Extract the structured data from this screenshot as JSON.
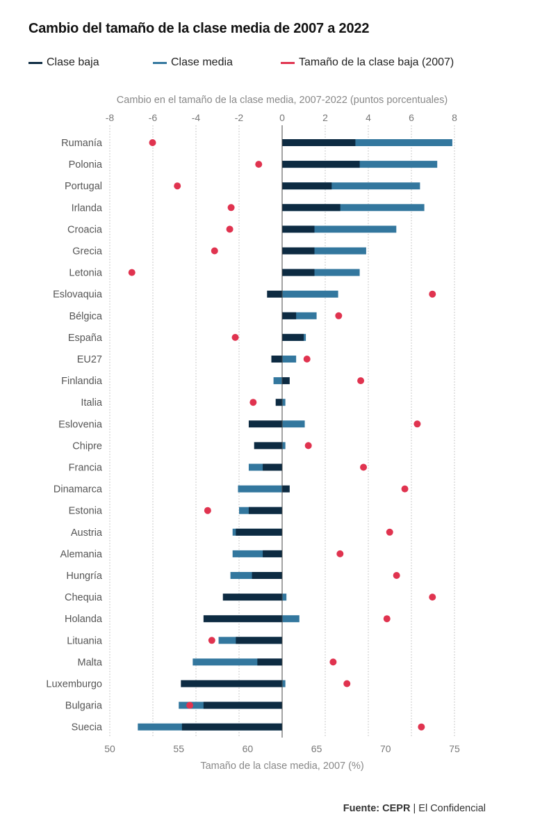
{
  "title": "Cambio del tamaño de la clase media de 2007 a 2022",
  "legend": [
    {
      "label": "Clase baja",
      "color": "#0d2b42"
    },
    {
      "label": "Clase media",
      "color": "#33779e"
    },
    {
      "label": "Tamaño de la clase baja (2007)",
      "color": "#e0334f"
    }
  ],
  "source": {
    "label": "Fuente: CEPR",
    "rest": " | El Confidencial"
  },
  "chart_data": {
    "type": "bar",
    "top_axis": {
      "title": "Cambio en el tamaño de la clase media, 2007-2022 (puntos porcentuales)",
      "range": [
        -8,
        8
      ],
      "ticks": [
        -8,
        -6,
        -4,
        -2,
        0,
        2,
        4,
        6,
        8
      ]
    },
    "bottom_axis": {
      "title": "Tamaño de la clase media, 2007 (%)",
      "range": [
        50,
        75
      ],
      "ticks": [
        50,
        55,
        60,
        65,
        70,
        75
      ]
    },
    "countries": [
      {
        "name": "Rumanía",
        "baja": 3.4,
        "media": 7.9,
        "dot": 53.1
      },
      {
        "name": "Polonia",
        "baja": 3.6,
        "media": 7.2,
        "dot": 60.8
      },
      {
        "name": "Portugal",
        "baja": 2.3,
        "media": 6.4,
        "dot": 54.9
      },
      {
        "name": "Irlanda",
        "baja": 2.7,
        "media": 6.6,
        "dot": 58.8
      },
      {
        "name": "Croacia",
        "baja": 1.5,
        "media": 5.3,
        "dot": 58.7
      },
      {
        "name": "Grecia",
        "baja": 1.5,
        "media": 3.9,
        "dot": 57.6
      },
      {
        "name": "Letonia",
        "baja": 1.5,
        "media": 3.6,
        "dot": 51.6
      },
      {
        "name": "Eslovaquia",
        "baja": -0.7,
        "media": 2.6,
        "dot": 73.4
      },
      {
        "name": "Bélgica",
        "baja": 0.65,
        "media": 1.6,
        "dot": 66.6
      },
      {
        "name": "España",
        "baja": 1.0,
        "media": 1.1,
        "dot": 59.1
      },
      {
        "name": "EU27",
        "baja": -0.5,
        "media": 0.65,
        "dot": 64.3
      },
      {
        "name": "Finlandia",
        "baja": 0.35,
        "media": -0.4,
        "dot": 68.2
      },
      {
        "name": "Italia",
        "baja": -0.3,
        "media": 0.15,
        "dot": 60.4
      },
      {
        "name": "Eslovenia",
        "baja": -1.55,
        "media": 1.05,
        "dot": 72.3
      },
      {
        "name": "Chipre",
        "baja": -1.3,
        "media": 0.15,
        "dot": 64.4
      },
      {
        "name": "Francia",
        "baja": -0.9,
        "media": -1.55,
        "dot": 68.4
      },
      {
        "name": "Dinamarca",
        "baja": 0.35,
        "media": -2.05,
        "dot": 71.4
      },
      {
        "name": "Estonia",
        "baja": -1.55,
        "media": -2.0,
        "dot": 57.1
      },
      {
        "name": "Austria",
        "baja": -2.15,
        "media": -2.3,
        "dot": 70.3
      },
      {
        "name": "Alemania",
        "baja": -0.9,
        "media": -2.3,
        "dot": 66.7
      },
      {
        "name": "Hungría",
        "baja": -1.4,
        "media": -2.4,
        "dot": 70.8
      },
      {
        "name": "Chequia",
        "baja": -2.75,
        "media": 0.2,
        "dot": 73.4
      },
      {
        "name": "Holanda",
        "baja": -3.65,
        "media": 0.8,
        "dot": 70.1
      },
      {
        "name": "Lituania",
        "baja": -2.15,
        "media": -2.95,
        "dot": 57.4
      },
      {
        "name": "Malta",
        "baja": -1.15,
        "media": -4.15,
        "dot": 66.2
      },
      {
        "name": "Luxemburgo",
        "baja": -4.7,
        "media": 0.15,
        "dot": 67.2
      },
      {
        "name": "Bulgaria",
        "baja": -3.65,
        "media": -4.8,
        "dot": 55.8
      },
      {
        "name": "Suecia",
        "baja": -4.65,
        "media": -6.7,
        "dot": 72.6
      }
    ]
  }
}
